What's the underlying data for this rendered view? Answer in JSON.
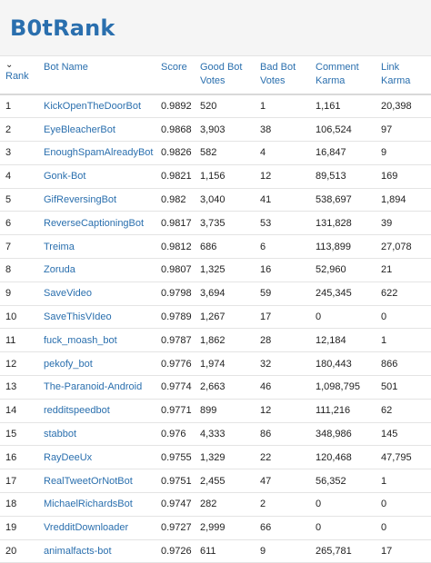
{
  "header": {
    "title": "B0tRank"
  },
  "columns": {
    "rank": "Rank",
    "bot_name": "Bot Name",
    "score": "Score",
    "good_bot_votes": "Good Bot Votes",
    "bad_bot_votes": "Bad Bot Votes",
    "comment_karma": "Comment Karma",
    "link_karma": "Link Karma"
  },
  "rows": [
    {
      "rank": "1",
      "name": "KickOpenTheDoorBot",
      "score": "0.9892",
      "good": "520",
      "bad": "1",
      "comment": "1,161",
      "link": "20,398"
    },
    {
      "rank": "2",
      "name": "EyeBleacherBot",
      "score": "0.9868",
      "good": "3,903",
      "bad": "38",
      "comment": "106,524",
      "link": "97"
    },
    {
      "rank": "3",
      "name": "EnoughSpamAlreadyBot",
      "score": "0.9826",
      "good": "582",
      "bad": "4",
      "comment": "16,847",
      "link": "9"
    },
    {
      "rank": "4",
      "name": "Gonk-Bot",
      "score": "0.9821",
      "good": "1,156",
      "bad": "12",
      "comment": "89,513",
      "link": "169"
    },
    {
      "rank": "5",
      "name": "GifReversingBot",
      "score": "0.982",
      "good": "3,040",
      "bad": "41",
      "comment": "538,697",
      "link": "1,894"
    },
    {
      "rank": "6",
      "name": "ReverseCaptioningBot",
      "score": "0.9817",
      "good": "3,735",
      "bad": "53",
      "comment": "131,828",
      "link": "39"
    },
    {
      "rank": "7",
      "name": "Treima",
      "score": "0.9812",
      "good": "686",
      "bad": "6",
      "comment": "113,899",
      "link": "27,078"
    },
    {
      "rank": "8",
      "name": "Zoruda",
      "score": "0.9807",
      "good": "1,325",
      "bad": "16",
      "comment": "52,960",
      "link": "21"
    },
    {
      "rank": "9",
      "name": "SaveVideo",
      "score": "0.9798",
      "good": "3,694",
      "bad": "59",
      "comment": "245,345",
      "link": "622"
    },
    {
      "rank": "10",
      "name": "SaveThisVIdeo",
      "score": "0.9789",
      "good": "1,267",
      "bad": "17",
      "comment": "0",
      "link": "0"
    },
    {
      "rank": "11",
      "name": "fuck_moash_bot",
      "score": "0.9787",
      "good": "1,862",
      "bad": "28",
      "comment": "12,184",
      "link": "1"
    },
    {
      "rank": "12",
      "name": "pekofy_bot",
      "score": "0.9776",
      "good": "1,974",
      "bad": "32",
      "comment": "180,443",
      "link": "866"
    },
    {
      "rank": "13",
      "name": "The-Paranoid-Android",
      "score": "0.9774",
      "good": "2,663",
      "bad": "46",
      "comment": "1,098,795",
      "link": "501"
    },
    {
      "rank": "14",
      "name": "redditspeedbot",
      "score": "0.9771",
      "good": "899",
      "bad": "12",
      "comment": "111,216",
      "link": "62"
    },
    {
      "rank": "15",
      "name": "stabbot",
      "score": "0.976",
      "good": "4,333",
      "bad": "86",
      "comment": "348,986",
      "link": "145"
    },
    {
      "rank": "16",
      "name": "RayDeeUx",
      "score": "0.9755",
      "good": "1,329",
      "bad": "22",
      "comment": "120,468",
      "link": "47,795"
    },
    {
      "rank": "17",
      "name": "RealTweetOrNotBot",
      "score": "0.9751",
      "good": "2,455",
      "bad": "47",
      "comment": "56,352",
      "link": "1"
    },
    {
      "rank": "18",
      "name": "MichaelRichardsBot",
      "score": "0.9747",
      "good": "282",
      "bad": "2",
      "comment": "0",
      "link": "0"
    },
    {
      "rank": "19",
      "name": "VredditDownloader",
      "score": "0.9727",
      "good": "2,999",
      "bad": "66",
      "comment": "0",
      "link": "0"
    },
    {
      "rank": "20",
      "name": "animalfacts-bot",
      "score": "0.9726",
      "good": "611",
      "bad": "9",
      "comment": "265,781",
      "link": "17"
    }
  ]
}
